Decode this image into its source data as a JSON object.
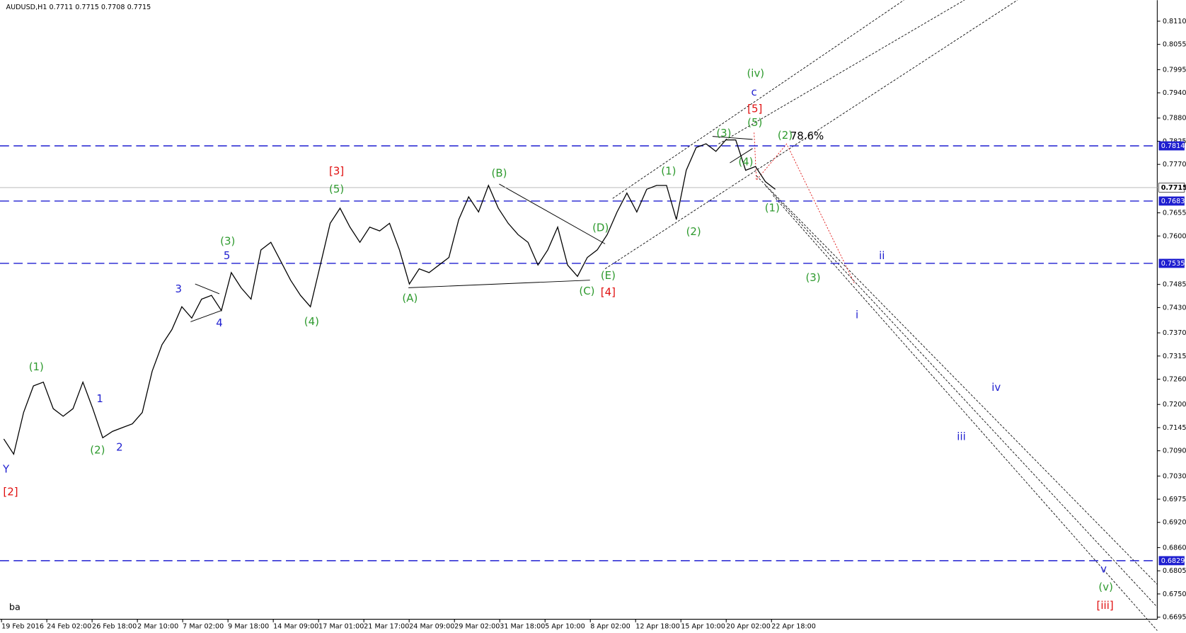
{
  "chart_data": {
    "type": "line",
    "title": "AUDUSD,H1  0.7711 0.7715 0.7708 0.7715",
    "corner_label": "ba",
    "color": "#000000",
    "values": [
      0.7118,
      0.7082,
      0.7181,
      0.7244,
      0.7253,
      0.719,
      0.7172,
      0.719,
      0.7253,
      0.719,
      0.7121,
      0.7136,
      0.7145,
      0.7154,
      0.7181,
      0.7279,
      0.7342,
      0.7378,
      0.7432,
      0.7405,
      0.745,
      0.7459,
      0.7423,
      0.7513,
      0.7477,
      0.745,
      0.7567,
      0.7585,
      0.754,
      0.7495,
      0.7459,
      0.7432,
      0.7531,
      0.763,
      0.7666,
      0.7621,
      0.7585,
      0.7621,
      0.7612,
      0.763,
      0.7567,
      0.7486,
      0.7522,
      0.7513,
      0.7531,
      0.7549,
      0.7639,
      0.7693,
      0.7657,
      0.772,
      0.7666,
      0.763,
      0.7603,
      0.7585,
      0.7531,
      0.7567,
      0.7621,
      0.7531,
      0.7504,
      0.7549,
      0.7567,
      0.7603,
      0.7657,
      0.7702,
      0.7657,
      0.7711,
      0.772,
      0.772,
      0.7639,
      0.7756,
      0.781,
      0.7819,
      0.7801,
      0.7828,
      0.7828,
      0.7756,
      0.7765,
      0.7729,
      0.7711
    ],
    "x_labels": [
      "19 Feb 2016",
      "24 Feb 02:00",
      "26 Feb 18:00",
      "2 Mar 10:00",
      "7 Mar 02:00",
      "9 Mar 18:00",
      "14 Mar 09:00",
      "17 Mar 01:00",
      "21 Mar 17:00",
      "24 Mar 09:00",
      "29 Mar 02:00",
      "31 Mar 18:00",
      "5 Apr 10:00",
      "8 Apr 02:00",
      "12 Apr 18:00",
      "15 Apr 10:00",
      "20 Apr 02:00",
      "22 Apr 18:00"
    ],
    "ylim": [
      0.669,
      0.816
    ],
    "yticks": [
      {
        "value": 0.811,
        "label": "0.8110"
      },
      {
        "value": 0.8055,
        "label": "0.8055"
      },
      {
        "value": 0.7995,
        "label": "0.7995"
      },
      {
        "value": 0.794,
        "label": "0.7940"
      },
      {
        "value": 0.788,
        "label": "0.7880"
      },
      {
        "value": 0.7825,
        "label": "0.7825"
      },
      {
        "value": 0.777,
        "label": "0.7770"
      },
      {
        "value": 0.7655,
        "label": "0.7655"
      },
      {
        "value": 0.76,
        "label": "0.7600"
      },
      {
        "value": 0.7485,
        "label": "0.7485"
      },
      {
        "value": 0.743,
        "label": "0.7430"
      },
      {
        "value": 0.737,
        "label": "0.7370"
      },
      {
        "value": 0.7315,
        "label": "0.7315"
      },
      {
        "value": 0.726,
        "label": "0.7260"
      },
      {
        "value": 0.72,
        "label": "0.7200"
      },
      {
        "value": 0.7145,
        "label": "0.7145"
      },
      {
        "value": 0.709,
        "label": "0.7090"
      },
      {
        "value": 0.703,
        "label": "0.7030"
      },
      {
        "value": 0.6975,
        "label": "0.6975"
      },
      {
        "value": 0.692,
        "label": "0.6920"
      },
      {
        "value": 0.686,
        "label": "0.6860"
      },
      {
        "value": 0.6805,
        "label": "0.6805"
      },
      {
        "value": 0.675,
        "label": "0.6750"
      },
      {
        "value": 0.6695,
        "label": "0.6695"
      }
    ],
    "levels": [
      {
        "value": 0.7814,
        "label": "0.7814"
      },
      {
        "value": 0.7683,
        "label": "0.7683"
      },
      {
        "value": 0.7535,
        "label": "0.7535"
      },
      {
        "value": 0.6829,
        "label": "0.6829"
      }
    ],
    "level_color": "#1f1fd0",
    "current_price": {
      "value": 0.7715,
      "label": "0.7715"
    },
    "annotations": [
      {
        "text": "(1)",
        "color": "#2e9a2e"
      },
      {
        "text": "(2)",
        "color": "#2e9a2e"
      },
      {
        "text": "Y",
        "color": "#1f1fd0"
      },
      {
        "text": "[2]",
        "color": "#e01010"
      },
      {
        "text": "1",
        "color": "#1f1fd0"
      },
      {
        "text": "2",
        "color": "#1f1fd0"
      },
      {
        "text": "3",
        "color": "#1f1fd0"
      },
      {
        "text": "4",
        "color": "#1f1fd0"
      },
      {
        "text": "5",
        "color": "#1f1fd0"
      },
      {
        "text": "(3)",
        "color": "#2e9a2e"
      },
      {
        "text": "(4)",
        "color": "#2e9a2e"
      },
      {
        "text": "[3]",
        "color": "#e01010"
      },
      {
        "text": "(5)",
        "color": "#2e9a2e"
      },
      {
        "text": "(A)",
        "color": "#2e9a2e"
      },
      {
        "text": "(B)",
        "color": "#2e9a2e"
      },
      {
        "text": "(C)",
        "color": "#2e9a2e"
      },
      {
        "text": "(D)",
        "color": "#2e9a2e"
      },
      {
        "text": "(E)",
        "color": "#2e9a2e"
      },
      {
        "text": "[4]",
        "color": "#e01010"
      },
      {
        "text": "(1)",
        "color": "#2e9a2e"
      },
      {
        "text": "(2)",
        "color": "#2e9a2e"
      },
      {
        "text": "(3)",
        "color": "#2e9a2e"
      },
      {
        "text": "(4)",
        "color": "#2e9a2e"
      },
      {
        "text": "(5)",
        "color": "#2e9a2e"
      },
      {
        "text": "[5]",
        "color": "#e01010"
      },
      {
        "text": "c",
        "color": "#1f1fd0"
      },
      {
        "text": "(iv)",
        "color": "#2e9a2e"
      },
      {
        "text": "(2)",
        "color": "#2e9a2e"
      },
      {
        "text": "78.6%",
        "color": "#000000"
      },
      {
        "text": "(1)",
        "color": "#2e9a2e"
      },
      {
        "text": "ii",
        "color": "#1f1fd0"
      },
      {
        "text": "(3)",
        "color": "#2e9a2e"
      },
      {
        "text": "i",
        "color": "#1f1fd0"
      },
      {
        "text": "iv",
        "color": "#1f1fd0"
      },
      {
        "text": "iii",
        "color": "#1f1fd0"
      },
      {
        "text": "v",
        "color": "#1f1fd0"
      },
      {
        "text": "(v)",
        "color": "#2e9a2e"
      },
      {
        "text": "[iii]",
        "color": "#e01010"
      }
    ]
  }
}
